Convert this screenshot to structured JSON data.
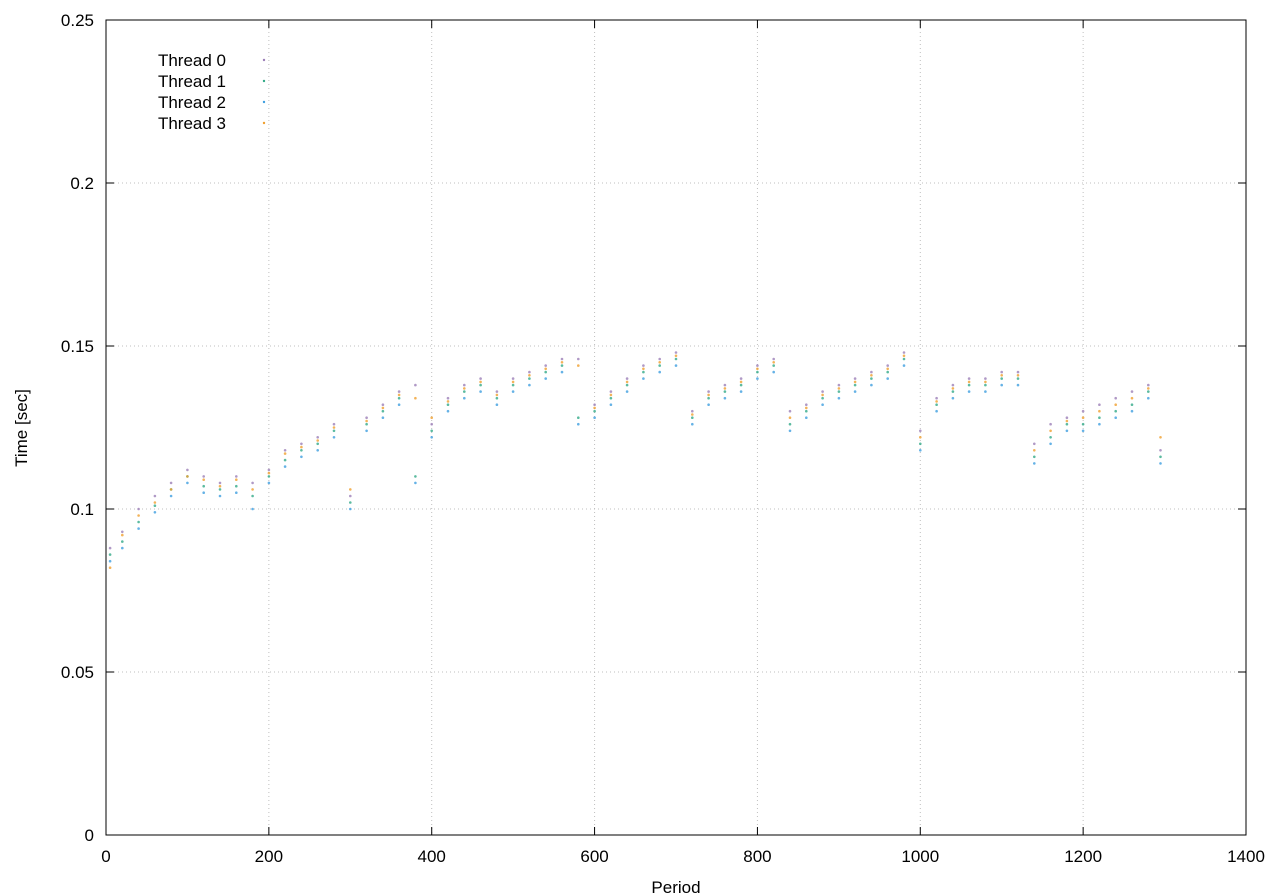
{
  "chart_data": {
    "type": "scatter",
    "title": "",
    "xlabel": "Period",
    "ylabel": "Time [sec]",
    "xlim": [
      0,
      1400
    ],
    "ylim": [
      0,
      0.25
    ],
    "x_ticks": [
      0,
      200,
      400,
      600,
      800,
      1000,
      1200,
      1400
    ],
    "y_ticks": [
      0,
      0.05,
      0.1,
      0.15,
      0.2,
      0.25
    ],
    "x_tick_labels": [
      "0",
      "200",
      "400",
      "600",
      "800",
      "1000",
      "1200",
      "1400"
    ],
    "y_tick_labels": [
      "0",
      "0.05",
      "0.1",
      "0.15",
      "0.2",
      "0.25"
    ],
    "grid": true,
    "legend_position": "top-left",
    "marker": "dot",
    "series": [
      {
        "name": "Thread 0",
        "color": "#9c7fb8",
        "x": [
          5,
          20,
          40,
          60,
          80,
          100,
          120,
          140,
          160,
          180,
          200,
          220,
          240,
          260,
          280,
          300,
          320,
          340,
          360,
          380,
          400,
          420,
          440,
          460,
          480,
          500,
          520,
          540,
          560,
          580,
          600,
          620,
          640,
          660,
          680,
          700,
          720,
          740,
          760,
          780,
          800,
          820,
          840,
          860,
          880,
          900,
          920,
          940,
          960,
          980,
          1000,
          1020,
          1040,
          1060,
          1080,
          1100,
          1120,
          1140,
          1160,
          1180,
          1200,
          1220,
          1240,
          1260,
          1280,
          1295
        ],
        "y": [
          0.088,
          0.093,
          0.1,
          0.104,
          0.108,
          0.112,
          0.11,
          0.108,
          0.11,
          0.108,
          0.112,
          0.118,
          0.12,
          0.122,
          0.126,
          0.104,
          0.128,
          0.132,
          0.136,
          0.138,
          0.126,
          0.134,
          0.138,
          0.14,
          0.136,
          0.14,
          0.142,
          0.144,
          0.146,
          0.146,
          0.132,
          0.136,
          0.14,
          0.144,
          0.146,
          0.148,
          0.13,
          0.136,
          0.138,
          0.14,
          0.144,
          0.146,
          0.13,
          0.132,
          0.136,
          0.138,
          0.14,
          0.142,
          0.144,
          0.148,
          0.124,
          0.134,
          0.138,
          0.14,
          0.14,
          0.142,
          0.142,
          0.12,
          0.126,
          0.128,
          0.13,
          0.132,
          0.134,
          0.136,
          0.138,
          0.118
        ]
      },
      {
        "name": "Thread 1",
        "color": "#33aa88",
        "x": [
          5,
          20,
          40,
          60,
          80,
          100,
          120,
          140,
          160,
          180,
          200,
          220,
          240,
          260,
          280,
          300,
          320,
          340,
          360,
          380,
          400,
          420,
          440,
          460,
          480,
          500,
          520,
          540,
          560,
          580,
          600,
          620,
          640,
          660,
          680,
          700,
          720,
          740,
          760,
          780,
          800,
          820,
          840,
          860,
          880,
          900,
          920,
          940,
          960,
          980,
          1000,
          1020,
          1040,
          1060,
          1080,
          1100,
          1120,
          1140,
          1160,
          1180,
          1200,
          1220,
          1240,
          1260,
          1280,
          1295
        ],
        "y": [
          0.086,
          0.09,
          0.096,
          0.101,
          0.106,
          0.11,
          0.107,
          0.106,
          0.107,
          0.104,
          0.11,
          0.115,
          0.118,
          0.12,
          0.124,
          0.102,
          0.126,
          0.13,
          0.134,
          0.11,
          0.124,
          0.132,
          0.136,
          0.138,
          0.134,
          0.138,
          0.14,
          0.142,
          0.144,
          0.128,
          0.13,
          0.134,
          0.138,
          0.142,
          0.144,
          0.146,
          0.128,
          0.134,
          0.136,
          0.138,
          0.142,
          0.144,
          0.126,
          0.13,
          0.134,
          0.136,
          0.138,
          0.14,
          0.142,
          0.146,
          0.12,
          0.132,
          0.136,
          0.138,
          0.138,
          0.14,
          0.14,
          0.116,
          0.122,
          0.126,
          0.126,
          0.128,
          0.13,
          0.132,
          0.136,
          0.116
        ]
      },
      {
        "name": "Thread 2",
        "color": "#3f9fe0",
        "x": [
          5,
          20,
          40,
          60,
          80,
          100,
          120,
          140,
          160,
          180,
          200,
          220,
          240,
          260,
          280,
          300,
          320,
          340,
          360,
          380,
          400,
          420,
          440,
          460,
          480,
          500,
          520,
          540,
          560,
          580,
          600,
          620,
          640,
          660,
          680,
          700,
          720,
          740,
          760,
          780,
          800,
          820,
          840,
          860,
          880,
          900,
          920,
          940,
          960,
          980,
          1000,
          1020,
          1040,
          1060,
          1080,
          1100,
          1120,
          1140,
          1160,
          1180,
          1200,
          1220,
          1240,
          1260,
          1280,
          1295
        ],
        "y": [
          0.084,
          0.088,
          0.094,
          0.099,
          0.104,
          0.108,
          0.105,
          0.104,
          0.105,
          0.1,
          0.108,
          0.113,
          0.116,
          0.118,
          0.122,
          0.1,
          0.124,
          0.128,
          0.132,
          0.108,
          0.122,
          0.13,
          0.134,
          0.136,
          0.132,
          0.136,
          0.138,
          0.14,
          0.142,
          0.126,
          0.128,
          0.132,
          0.136,
          0.14,
          0.142,
          0.144,
          0.126,
          0.132,
          0.134,
          0.136,
          0.14,
          0.142,
          0.124,
          0.128,
          0.132,
          0.134,
          0.136,
          0.138,
          0.14,
          0.144,
          0.118,
          0.13,
          0.134,
          0.136,
          0.136,
          0.138,
          0.138,
          0.114,
          0.12,
          0.124,
          0.124,
          0.126,
          0.128,
          0.13,
          0.134,
          0.114
        ]
      },
      {
        "name": "Thread 3",
        "color": "#f0a030",
        "x": [
          5,
          20,
          40,
          60,
          80,
          100,
          120,
          140,
          160,
          180,
          200,
          220,
          240,
          260,
          280,
          300,
          320,
          340,
          360,
          380,
          400,
          420,
          440,
          460,
          480,
          500,
          520,
          540,
          560,
          580,
          600,
          620,
          640,
          660,
          680,
          700,
          720,
          740,
          760,
          780,
          800,
          820,
          840,
          860,
          880,
          900,
          920,
          940,
          960,
          980,
          1000,
          1020,
          1040,
          1060,
          1080,
          1100,
          1120,
          1140,
          1160,
          1180,
          1200,
          1220,
          1240,
          1260,
          1280,
          1295
        ],
        "y": [
          0.082,
          0.092,
          0.098,
          0.102,
          0.106,
          0.11,
          0.109,
          0.107,
          0.109,
          0.106,
          0.111,
          0.117,
          0.119,
          0.121,
          0.125,
          0.106,
          0.127,
          0.131,
          0.135,
          0.134,
          0.128,
          0.133,
          0.137,
          0.139,
          0.135,
          0.139,
          0.141,
          0.143,
          0.145,
          0.144,
          0.131,
          0.135,
          0.139,
          0.143,
          0.145,
          0.147,
          0.129,
          0.135,
          0.137,
          0.139,
          0.143,
          0.145,
          0.128,
          0.131,
          0.135,
          0.137,
          0.139,
          0.141,
          0.143,
          0.147,
          0.122,
          0.133,
          0.137,
          0.139,
          0.139,
          0.141,
          0.141,
          0.118,
          0.124,
          0.127,
          0.128,
          0.13,
          0.132,
          0.134,
          0.137,
          0.122
        ]
      }
    ]
  }
}
